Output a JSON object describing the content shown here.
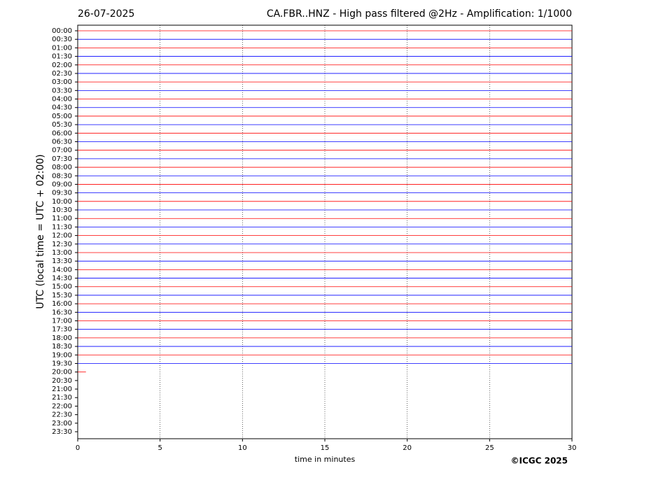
{
  "chart_data": {
    "type": "helicorder",
    "title_left": "26-07-2025",
    "title": "CA.FBR..HNZ - High pass filtered @2Hz - Amplification: 1/1000",
    "ylabel": "UTC (local time = UTC + 02:00)",
    "xlabel": "time in minutes",
    "credit": "©ICGC 2025",
    "categories": [
      "00:00",
      "00:30",
      "01:00",
      "01:30",
      "02:00",
      "02:30",
      "03:00",
      "03:30",
      "04:00",
      "04:30",
      "05:00",
      "05:30",
      "06:00",
      "06:30",
      "07:00",
      "07:30",
      "08:00",
      "08:30",
      "09:00",
      "09:30",
      "10:00",
      "10:30",
      "11:00",
      "11:30",
      "12:00",
      "12:30",
      "13:00",
      "13:30",
      "14:00",
      "14:30",
      "15:00",
      "15:30",
      "16:00",
      "16:30",
      "17:00",
      "17:30",
      "18:00",
      "18:30",
      "19:00",
      "19:30",
      "20:00",
      "20:30",
      "21:00",
      "21:30",
      "22:00",
      "22:30",
      "23:00",
      "23:30"
    ],
    "trace_end": [
      30,
      30,
      30,
      30,
      30,
      30,
      30,
      30,
      30,
      30,
      30,
      30,
      30,
      30,
      30,
      30,
      30,
      30,
      30,
      30,
      30,
      30,
      30,
      30,
      30,
      30,
      30,
      30,
      30,
      30,
      30,
      30,
      30,
      30,
      30,
      30,
      30,
      30,
      30,
      30,
      0.5,
      null,
      null,
      null,
      null,
      null,
      null,
      null
    ],
    "colors": [
      "#ff0000",
      "#0000ff"
    ],
    "xlim": [
      0,
      30
    ],
    "xticks": [
      0,
      5,
      10,
      15,
      20,
      25,
      30
    ],
    "grid": true
  }
}
